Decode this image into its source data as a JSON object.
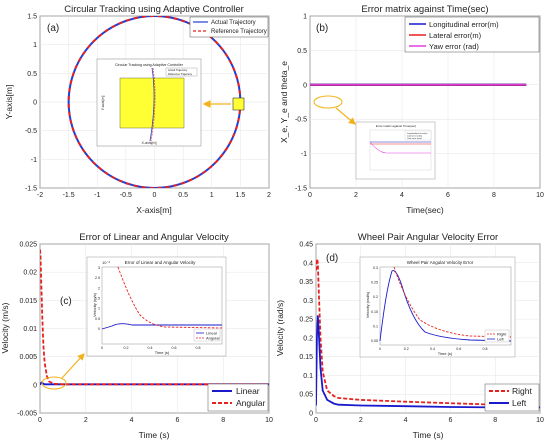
{
  "chart_data": [
    {
      "id": "a",
      "type": "line",
      "panel_label": "(a)",
      "title": "Circular Tracking using Adaptive Controller",
      "xlabel": "X-axis[m]",
      "ylabel": "Y-axis[m]",
      "xlim": [
        -2,
        2
      ],
      "ylim": [
        -1.5,
        1.5
      ],
      "xticks": [
        "-2",
        "-1.5",
        "-1",
        "-0.5",
        "0",
        "0.5",
        "1",
        "1.5",
        "2"
      ],
      "yticks": [
        "-1.5",
        "-1",
        "-0.5",
        "0",
        "0.5",
        "1",
        "1.5"
      ],
      "legend_position": "top-right",
      "series": [
        {
          "name": "Actual Trajectory",
          "color": "#1f3fd6",
          "style": "solid",
          "shape": "circle",
          "radius": 1.5
        },
        {
          "name": "Reference Trajectory",
          "color": "#e8211f",
          "style": "dashed",
          "shape": "circle",
          "radius": 1.5
        }
      ],
      "inset": {
        "title": "Circular Tracking using Adaptive Controller",
        "xlabel": "X-axis[m]",
        "ylabel": "Y-axis[m]",
        "legend": [
          "Actual Trajectory",
          "Reference Trajectory"
        ]
      }
    },
    {
      "id": "b",
      "type": "line",
      "panel_label": "(b)",
      "title": "Error matrix against Time(sec)",
      "xlabel": "Time(sec)",
      "ylabel": "X_e, Y_e and theta_e",
      "xlim": [
        0,
        10
      ],
      "ylim": [
        -1.5,
        1
      ],
      "xticks": [
        "0",
        "2",
        "4",
        "6",
        "8",
        "10"
      ],
      "yticks": [
        "-1.5",
        "-1",
        "-0.5",
        "0",
        "0.5",
        "1"
      ],
      "legend_position": "top-right",
      "series": [
        {
          "name": "Longitudinal error(m)",
          "color": "#1a1acc",
          "x": [
            0,
            9.4
          ],
          "y": [
            0,
            0
          ]
        },
        {
          "name": "Lateral error(m)",
          "color": "#e8211f",
          "x": [
            0,
            9.4
          ],
          "y": [
            0,
            0
          ]
        },
        {
          "name": "Yaw error (rad)",
          "color": "#e040e0",
          "x": [
            0,
            9.4
          ],
          "y": [
            0,
            0
          ]
        }
      ],
      "inset": {
        "title": "Error matrix against Time(sec)",
        "legend": [
          "Longitudinal error(m)",
          "Lateral error(m)",
          "Yaw error (rad)"
        ]
      }
    },
    {
      "id": "c",
      "type": "line",
      "panel_label": "(c)",
      "title": "Error of Linear and Angular Velocity",
      "xlabel": "Time (s)",
      "ylabel": "Velocity (m/s)",
      "xlim": [
        0,
        10
      ],
      "ylim": [
        -0.005,
        0.025
      ],
      "xticks": [
        "0",
        "2",
        "4",
        "6",
        "8",
        "10"
      ],
      "yticks": [
        "-0.005",
        "0",
        "0.005",
        "0.01",
        "0.015",
        "0.02",
        "0.025"
      ],
      "legend_position": "bottom-right",
      "series": [
        {
          "name": "Linear",
          "color": "#1a1acc",
          "style": "solid",
          "x": [
            0,
            0.03,
            0.06,
            0.1,
            0.2,
            0.4,
            0.6,
            1,
            2,
            5,
            10
          ],
          "y": [
            0,
            0.0002,
            0.0004,
            0.0003,
            0.0001,
            0.0001,
            0.0001,
            0.0001,
            0.0001,
            0.0001,
            0.0001
          ]
        },
        {
          "name": "Angular",
          "color": "#e8211f",
          "style": "dashed",
          "x": [
            0,
            0.02,
            0.05,
            0.1,
            0.15,
            0.2,
            0.3,
            0.4,
            0.6,
            1,
            2,
            5,
            10
          ],
          "y": [
            0.024,
            0.023,
            0.019,
            0.012,
            0.007,
            0.004,
            0.0015,
            0.0006,
            0.0002,
            0.0001,
            0.0001,
            0.0001,
            0.0001
          ]
        }
      ],
      "inset": {
        "title": "Error of Linear and Angular Velocity",
        "ylabel": "Velocity (m/s)",
        "xlabel": "Time (s)",
        "exponent": "10⁻³",
        "xticks": [
          "0",
          "0.2",
          "0.4",
          "0.6",
          "0.8"
        ],
        "yticks": [
          "0",
          "0.5",
          "1",
          "1.5",
          "2",
          "2.5",
          "3"
        ],
        "legend": [
          "Linear",
          "Angular"
        ]
      }
    },
    {
      "id": "d",
      "type": "line",
      "panel_label": "(d)",
      "title": "Wheel Pair Angular Velocity Error",
      "xlabel": "Time (s)",
      "ylabel": "Velocity (rad/s)",
      "xlim": [
        0,
        10
      ],
      "ylim": [
        0,
        0.45
      ],
      "xticks": [
        "0",
        "2",
        "4",
        "6",
        "8",
        "10"
      ],
      "yticks": [
        "0",
        "0.05",
        "0.1",
        "0.15",
        "0.2",
        "0.25",
        "0.3",
        "0.35",
        "0.4",
        "0.45"
      ],
      "legend_position": "bottom-right",
      "series": [
        {
          "name": "Right",
          "color": "#e8211f",
          "style": "dashed",
          "x": [
            0,
            0.05,
            0.08,
            0.12,
            0.2,
            0.3,
            0.5,
            0.8,
            1,
            2,
            4,
            6,
            8,
            10
          ],
          "y": [
            0.38,
            0.41,
            0.4,
            0.33,
            0.2,
            0.11,
            0.06,
            0.045,
            0.04,
            0.035,
            0.03,
            0.026,
            0.022,
            0.02
          ]
        },
        {
          "name": "Left",
          "color": "#1a1acc",
          "style": "solid",
          "x": [
            0,
            0.04,
            0.08,
            0.12,
            0.2,
            0.3,
            0.5,
            0.8,
            1,
            2,
            4,
            6,
            8,
            10
          ],
          "y": [
            0.02,
            0.2,
            0.26,
            0.22,
            0.12,
            0.06,
            0.035,
            0.025,
            0.022,
            0.02,
            0.018,
            0.016,
            0.015,
            0.015
          ]
        }
      ],
      "inset": {
        "title": "Wheel Pair Angular Velocity Error",
        "ylabel": "Velocity (rad/s)",
        "xlabel": "Time (s)",
        "xticks": [
          "0",
          "0.2",
          "0.4",
          "0.6",
          "0.8"
        ],
        "yticks": [
          "0.05",
          "0.1",
          "0.15",
          "0.2",
          "0.25",
          "0.3"
        ],
        "legend": [
          "Right",
          "Left"
        ]
      }
    }
  ],
  "colors": {
    "axis": "#262626",
    "grid": "#e4e4e4",
    "arrow": "#f2b21a",
    "inset_fill": "#ffff33",
    "inset_border": "#999999"
  }
}
